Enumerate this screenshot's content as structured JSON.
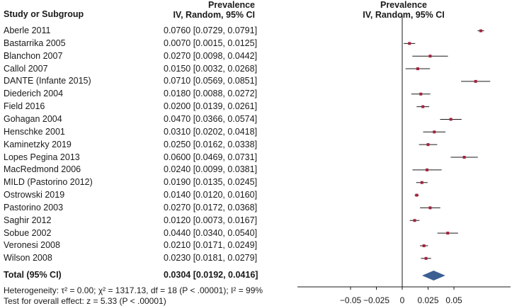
{
  "headers": {
    "study": "Study or Subgroup",
    "prev_title": "Prevalence",
    "prev_sub": "IV, Random, 95% CI",
    "plot_title": "Prevalence",
    "plot_sub": "IV, Random, 95% CI"
  },
  "chart_data": {
    "type": "forest",
    "colors": {
      "marker": "#a3223e",
      "diamond": "#3b5f93",
      "line": "#1a1a1a"
    },
    "xlim": [
      -0.06,
      0.09
    ],
    "xticks": [
      {
        "value": -0.05,
        "label": "−0.05"
      },
      {
        "value": -0.025,
        "label": "−0.025"
      },
      {
        "value": 0,
        "label": "0"
      },
      {
        "value": 0.025,
        "label": "0.025"
      },
      {
        "value": 0.05,
        "label": "0.05"
      }
    ],
    "studies": [
      {
        "name": "Aberle 2011",
        "est": 0.076,
        "lo": 0.0729,
        "hi": 0.0791,
        "label": "0.0760 [0.0729, 0.0791]"
      },
      {
        "name": "Bastarrika 2005",
        "est": 0.007,
        "lo": 0.0015,
        "hi": 0.0125,
        "label": "0.0070 [0.0015, 0.0125]"
      },
      {
        "name": "Blanchon 2007",
        "est": 0.027,
        "lo": 0.0098,
        "hi": 0.0442,
        "label": "0.0270 [0.0098, 0.0442]"
      },
      {
        "name": "Callol 2007",
        "est": 0.015,
        "lo": 0.0032,
        "hi": 0.0268,
        "label": "0.0150 [0.0032, 0.0268]"
      },
      {
        "name": "DANTE (Infante 2015)",
        "est": 0.071,
        "lo": 0.0569,
        "hi": 0.0851,
        "label": "0.0710 [0.0569, 0.0851]"
      },
      {
        "name": "Diederich 2004",
        "est": 0.018,
        "lo": 0.0088,
        "hi": 0.0272,
        "label": "0.0180 [0.0088, 0.0272]"
      },
      {
        "name": "Field 2016",
        "est": 0.02,
        "lo": 0.0139,
        "hi": 0.0261,
        "label": "0.0200 [0.0139, 0.0261]"
      },
      {
        "name": "Gohagan 2004",
        "est": 0.047,
        "lo": 0.0366,
        "hi": 0.0574,
        "label": "0.0470 [0.0366, 0.0574]"
      },
      {
        "name": "Henschke 2001",
        "est": 0.031,
        "lo": 0.0202,
        "hi": 0.0418,
        "label": "0.0310 [0.0202, 0.0418]"
      },
      {
        "name": "Kaminetzky 2019",
        "est": 0.025,
        "lo": 0.0162,
        "hi": 0.0338,
        "label": "0.0250 [0.0162, 0.0338]"
      },
      {
        "name": "Lopes Pegina 2013",
        "est": 0.06,
        "lo": 0.0469,
        "hi": 0.0731,
        "label": "0.0600 [0.0469, 0.0731]"
      },
      {
        "name": "MacRedmond 2006",
        "est": 0.024,
        "lo": 0.0099,
        "hi": 0.0381,
        "label": "0.0240 [0.0099, 0.0381]"
      },
      {
        "name": "MILD (Pastorino 2012)",
        "est": 0.019,
        "lo": 0.0135,
        "hi": 0.0245,
        "label": "0.0190 [0.0135, 0.0245]"
      },
      {
        "name": "Ostrowski 2019",
        "est": 0.014,
        "lo": 0.012,
        "hi": 0.016,
        "label": "0.0140 [0.0120, 0.0160]"
      },
      {
        "name": "Pastorino 2003",
        "est": 0.027,
        "lo": 0.0172,
        "hi": 0.0368,
        "label": "0.0270 [0.0172, 0.0368]"
      },
      {
        "name": "Saghir 2012",
        "est": 0.012,
        "lo": 0.0073,
        "hi": 0.0167,
        "label": "0.0120 [0.0073, 0.0167]"
      },
      {
        "name": "Sobue 2002",
        "est": 0.044,
        "lo": 0.034,
        "hi": 0.054,
        "label": "0.0440 [0.0340, 0.0540]"
      },
      {
        "name": "Veronesi 2008",
        "est": 0.021,
        "lo": 0.0171,
        "hi": 0.0249,
        "label": "0.0210 [0.0171, 0.0249]"
      },
      {
        "name": "Wilson 2008",
        "est": 0.023,
        "lo": 0.0181,
        "hi": 0.0279,
        "label": "0.0230 [0.0181, 0.0279]"
      }
    ],
    "total": {
      "name": "Total (95% CI)",
      "est": 0.0304,
      "lo": 0.0192,
      "hi": 0.0416,
      "label": "0.0304 [0.0192, 0.0416]"
    }
  },
  "footer": {
    "heterogeneity": "Heterogeneity: τ² = 0.00; χ² = 1317.13, df = 18 (P < .00001); I² = 99%",
    "overall": "Test for overall effect: z = 5.33 (P < .00001)"
  }
}
